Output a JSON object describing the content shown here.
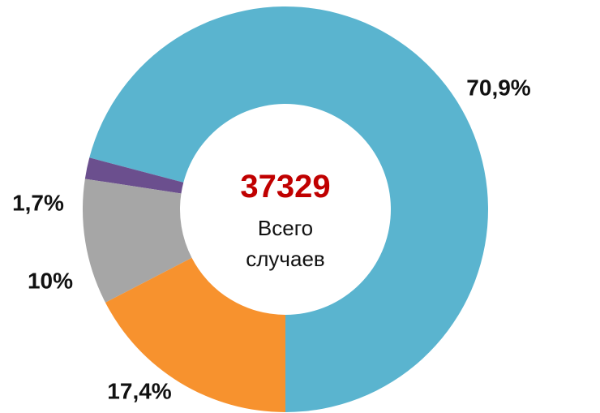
{
  "chart_data": {
    "type": "donut",
    "values": [
      70.9,
      1.7,
      10,
      17.4
    ],
    "value_labels": [
      "70,9%",
      "1,7%",
      "10%",
      "17,4%"
    ],
    "colors": [
      "#5ab4cf",
      "#6b4f8e",
      "#a6a6a6",
      "#f7922e"
    ],
    "total": 37329,
    "total_label": "Всего случаев"
  }
}
